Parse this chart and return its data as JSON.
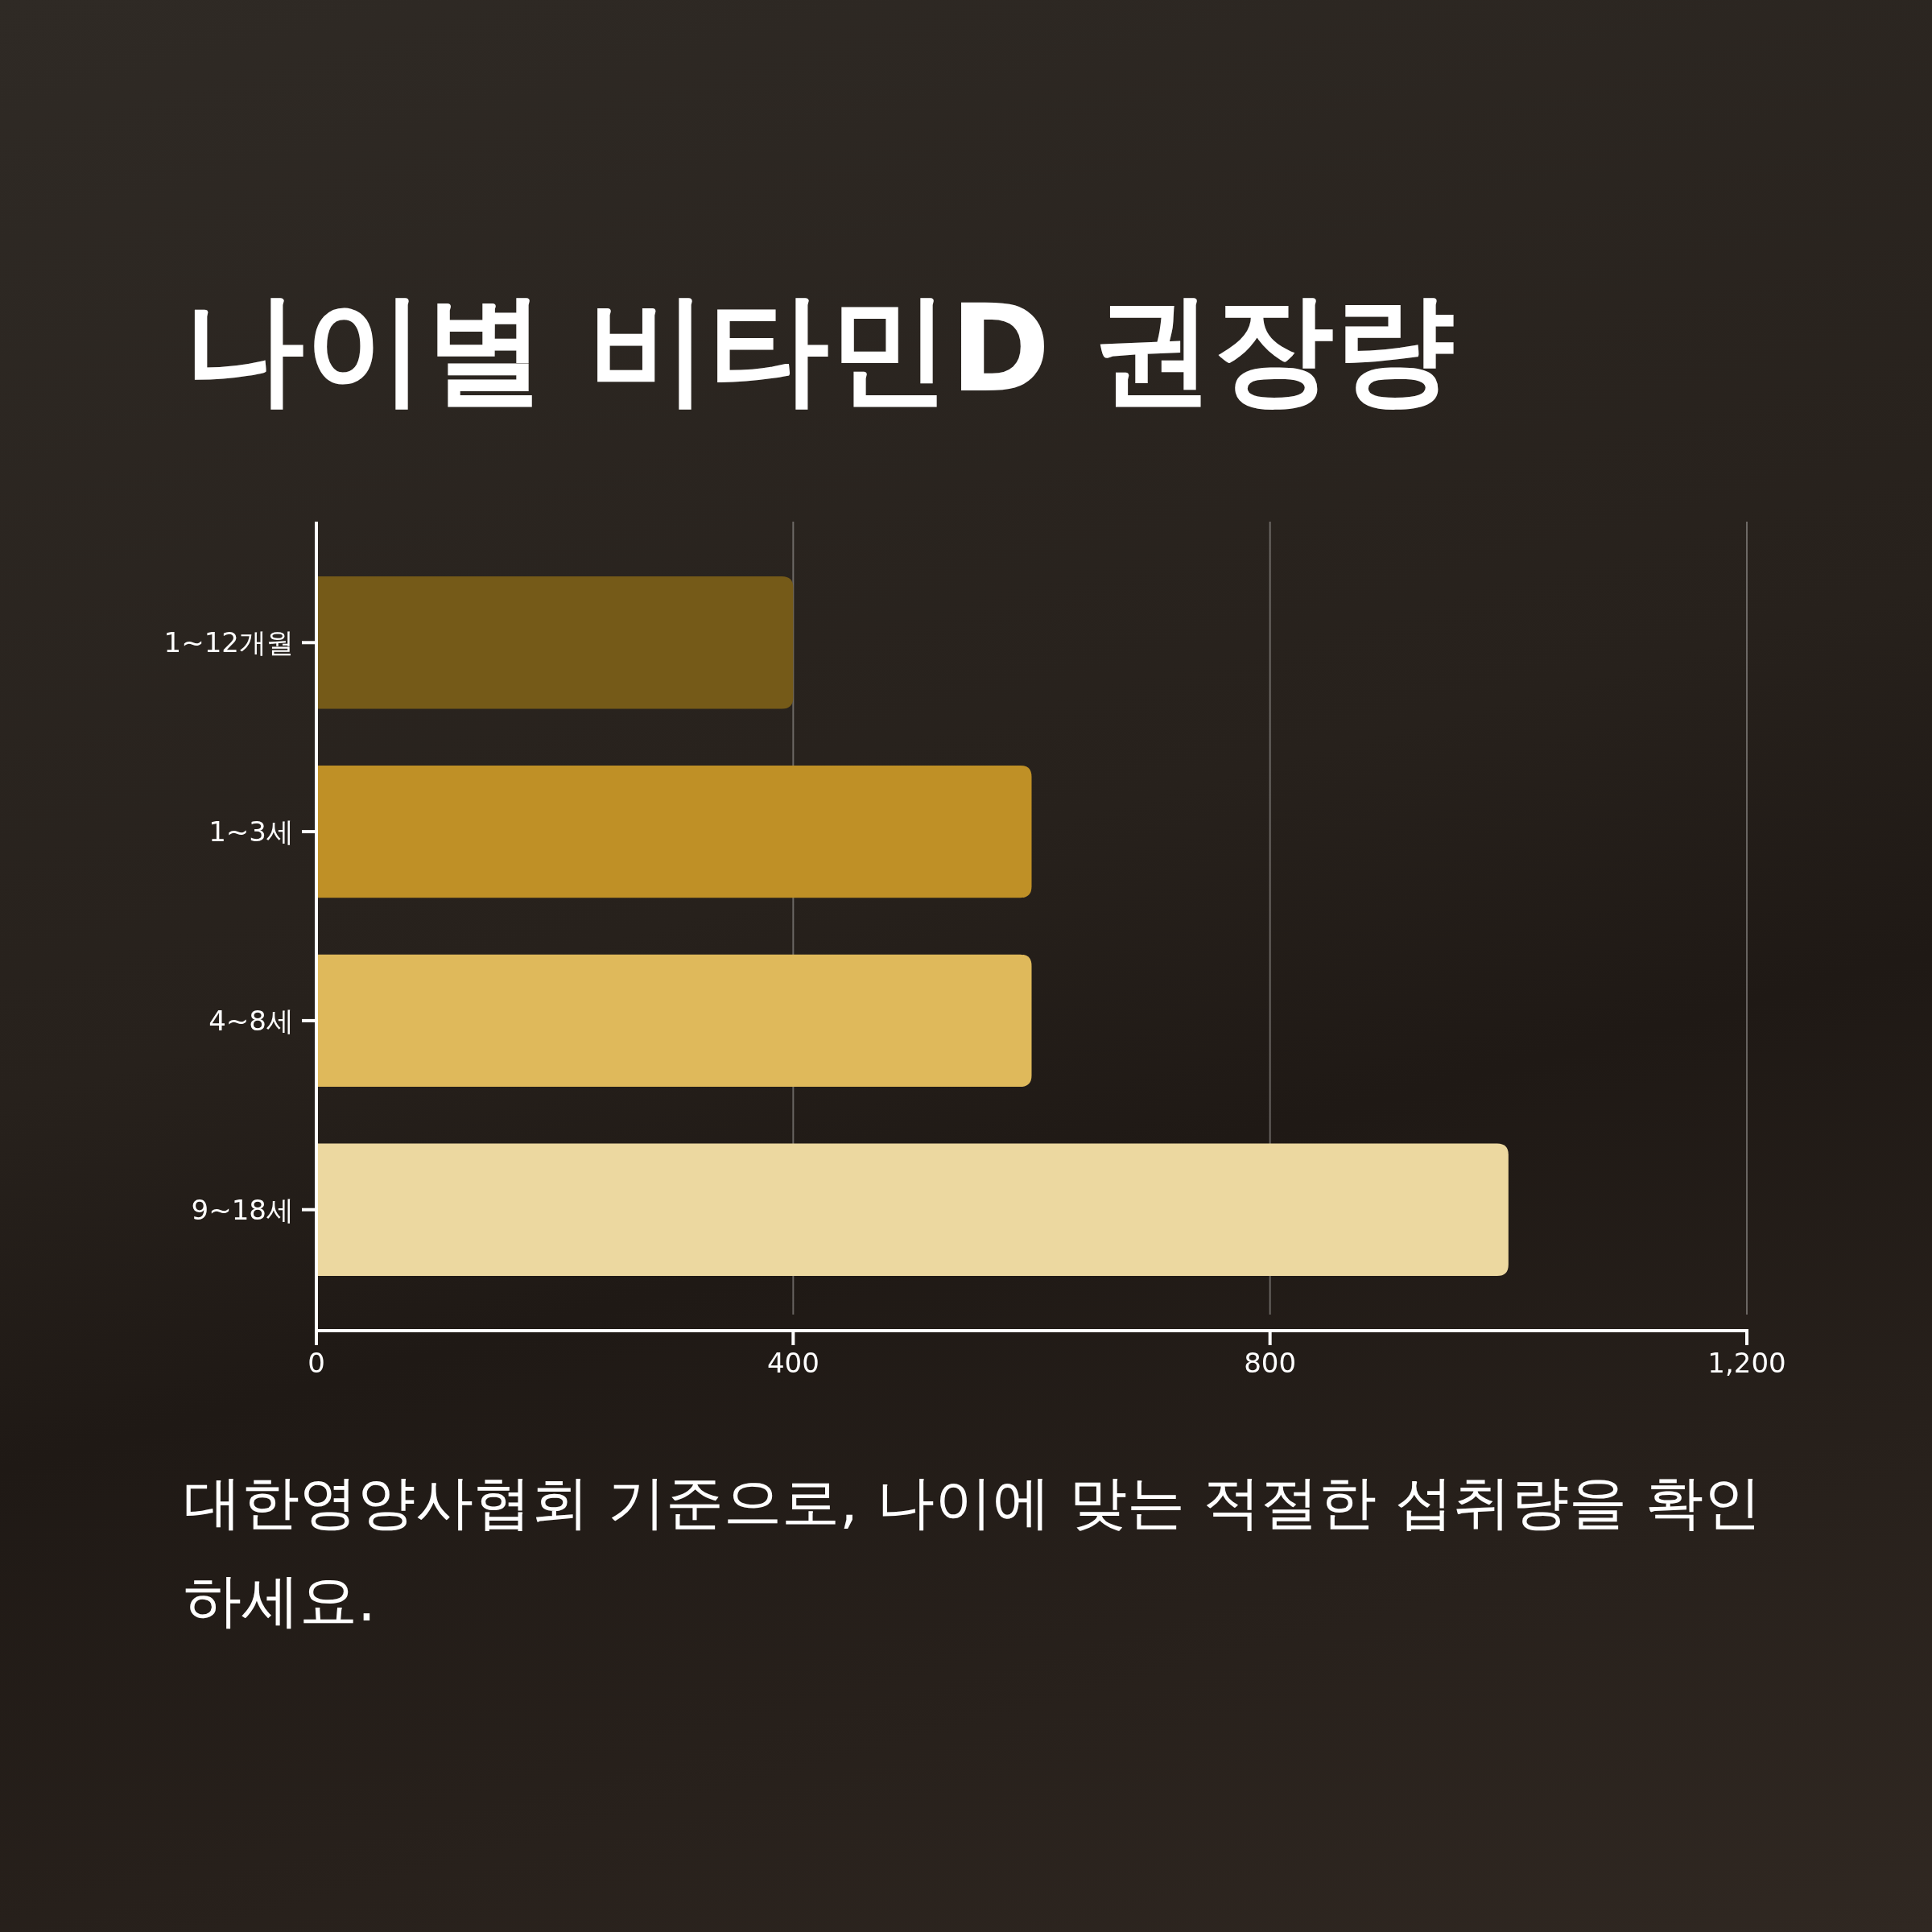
{
  "chart_data": {
    "type": "bar",
    "orientation": "horizontal",
    "title": "나이별 비타민D 권장량",
    "categories": [
      "1~12개월",
      "1~3세",
      "4~8세",
      "9~18세"
    ],
    "values": [
      400,
      600,
      600,
      1000
    ],
    "colors": [
      "#755a18",
      "#bf9026",
      "#dfb95b",
      "#ecd8a0"
    ],
    "xlim": [
      0,
      1200
    ],
    "xticks": [
      0,
      400,
      800,
      {
        "value": 1200,
        "label": "1,200"
      }
    ],
    "grid": "x",
    "annotations": [
      "대한영양사협회 기준으로, 나이에 맞는 적절한 섭취량을 확인하세요."
    ]
  }
}
